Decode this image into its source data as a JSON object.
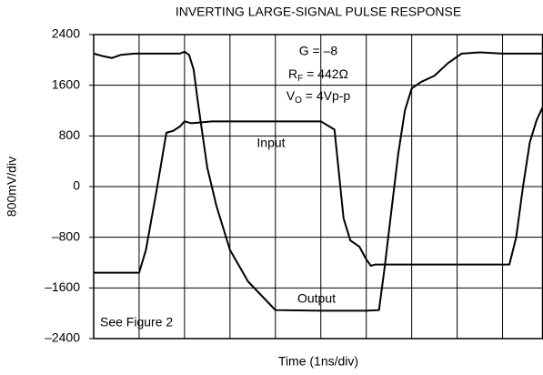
{
  "chart_data": {
    "type": "line",
    "title": "INVERTING LARGE-SIGNAL PULSE RESPONSE",
    "xlabel": "Time (1ns/div)",
    "ylabel": "800mV/div",
    "xlim": [
      0,
      9.88
    ],
    "xticks": [
      0,
      1,
      2,
      3,
      4,
      5,
      6,
      7,
      8,
      9
    ],
    "ylim": [
      -2400,
      2400
    ],
    "yticks": [
      {
        "value": -2400,
        "label": "–2400"
      },
      {
        "value": -1600,
        "label": "–1600"
      },
      {
        "value": -800,
        "label": "–800"
      },
      0,
      800,
      1600,
      2400
    ],
    "grid": true,
    "annotations": {
      "gain": "G = –8",
      "rf": {
        "main": "R",
        "sub": "F",
        "rest": " = 442Ω"
      },
      "vo": {
        "main": "V",
        "sub": "O",
        "rest": " = 4Vp-p"
      },
      "figure": "See Figure 2"
    },
    "series": [
      {
        "name": "Input",
        "color": "#000000",
        "x": [
          0,
          1.0,
          1.15,
          1.4,
          1.6,
          1.75,
          1.9,
          2.0,
          2.15,
          2.3,
          2.6,
          3.0,
          4.0,
          5.0,
          5.3,
          5.4,
          5.5,
          5.65,
          5.85,
          6.0,
          6.1,
          6.2,
          7.0,
          8.0,
          9.0,
          9.15,
          9.3,
          9.45,
          9.6,
          9.75,
          9.88
        ],
        "values": [
          -1360,
          -1360,
          -1000,
          0,
          850,
          880,
          950,
          1030,
          1000,
          1010,
          1030,
          1030,
          1030,
          1030,
          900,
          200,
          -500,
          -850,
          -950,
          -1150,
          -1250,
          -1230,
          -1230,
          -1230,
          -1230,
          -1230,
          -800,
          0,
          700,
          1050,
          1250
        ]
      },
      {
        "name": "Output",
        "color": "#000000",
        "x": [
          0,
          0.2,
          0.4,
          0.6,
          0.9,
          1.5,
          1.9,
          2.0,
          2.1,
          2.2,
          2.3,
          2.5,
          2.7,
          3.0,
          3.4,
          3.8,
          4.0,
          5.0,
          6.0,
          6.28,
          6.4,
          6.55,
          6.7,
          6.85,
          7.0,
          7.2,
          7.5,
          7.8,
          8.1,
          8.5,
          9.0,
          9.88
        ],
        "values": [
          2100,
          2060,
          2030,
          2080,
          2100,
          2100,
          2100,
          2130,
          2080,
          1850,
          1300,
          300,
          -300,
          -1000,
          -1500,
          -1800,
          -1950,
          -1960,
          -1960,
          -1950,
          -1300,
          -400,
          500,
          1200,
          1550,
          1650,
          1750,
          1950,
          2100,
          2120,
          2100,
          2100
        ]
      }
    ]
  }
}
